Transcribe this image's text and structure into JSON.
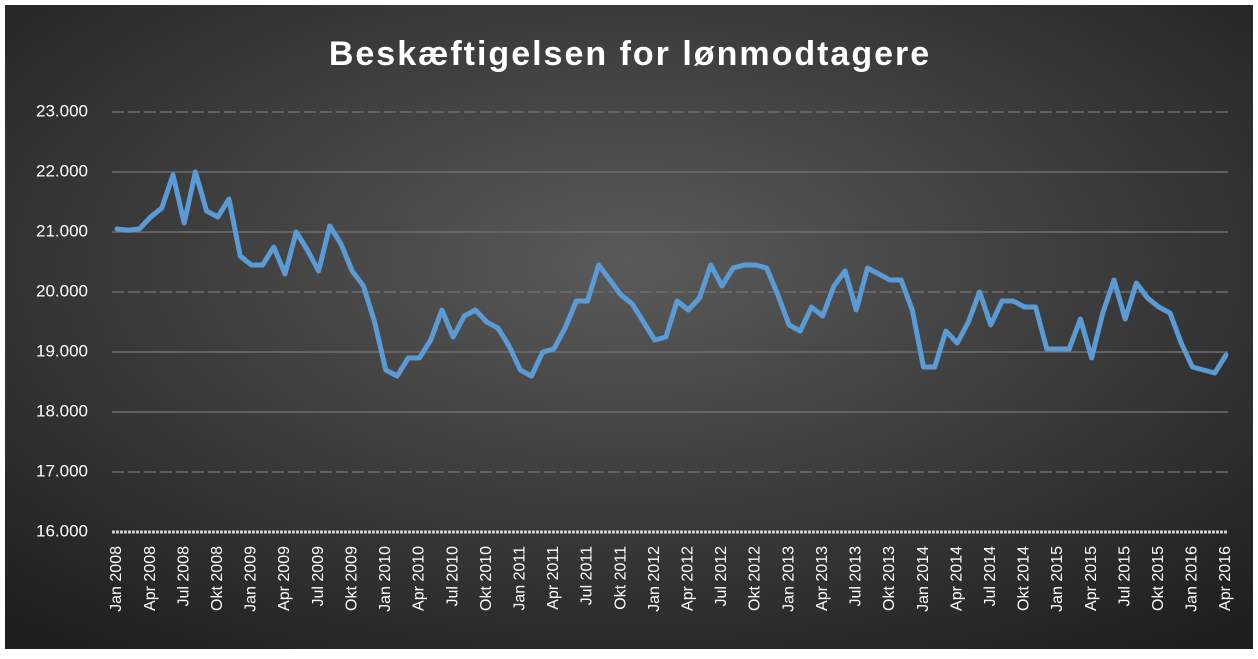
{
  "chart_data": {
    "type": "line",
    "title": "Beskæftigelsen for lønmodtagere",
    "categories": [
      "Jan 2008",
      null,
      null,
      "Apr 2008",
      null,
      null,
      "Jul 2008",
      null,
      null,
      "Okt 2008",
      null,
      null,
      "Jan 2009",
      null,
      null,
      "Apr 2009",
      null,
      null,
      "Jul 2009",
      null,
      null,
      "Okt 2009",
      null,
      null,
      "Jan 2010",
      null,
      null,
      "Apr 2010",
      null,
      null,
      "Jul 2010",
      null,
      null,
      "Okt 2010",
      null,
      null,
      "Jan 2011",
      null,
      null,
      "Apr 2011",
      null,
      null,
      "Jul 2011",
      null,
      null,
      "Okt 2011",
      null,
      null,
      "Jan 2012",
      null,
      null,
      "Apr 2012",
      null,
      null,
      "Jul 2012",
      null,
      null,
      "Okt 2012",
      null,
      null,
      "Jan 2013",
      null,
      null,
      "Apr 2013",
      null,
      null,
      "Jul 2013",
      null,
      null,
      "Okt 2013",
      null,
      null,
      "Jan 2014",
      null,
      null,
      "Apr 2014",
      null,
      null,
      "Jul 2014",
      null,
      null,
      "Okt 2014",
      null,
      null,
      "Jan 2015",
      null,
      null,
      "Apr 2015",
      null,
      null,
      "Jul 2015",
      null,
      null,
      "Okt 2015",
      null,
      null,
      "Jan 2016",
      null,
      null,
      "Apr 2016"
    ],
    "values": [
      21050,
      21030,
      21050,
      21250,
      21400,
      21950,
      21150,
      22000,
      21350,
      21250,
      21550,
      20600,
      20450,
      20450,
      20750,
      20300,
      21000,
      20700,
      20350,
      21100,
      20800,
      20350,
      20100,
      19500,
      18700,
      18600,
      18900,
      18900,
      19200,
      19700,
      19250,
      19600,
      19700,
      19500,
      19400,
      19100,
      18700,
      18600,
      19000,
      19050,
      19400,
      19850,
      19850,
      20450,
      20200,
      19950,
      19800,
      19500,
      19200,
      19250,
      19850,
      19700,
      19900,
      20450,
      20100,
      20400,
      20450,
      20450,
      20400,
      19950,
      19450,
      19350,
      19750,
      19600,
      20100,
      20350,
      19700,
      20400,
      20300,
      20200,
      20200,
      19700,
      18750,
      18750,
      19350,
      19150,
      19500,
      20000,
      19450,
      19850,
      19850,
      19750,
      19750,
      19050,
      19050,
      19050,
      19550,
      18900,
      19650,
      20200,
      19550,
      20150,
      19900,
      19750,
      19650,
      19150,
      18750,
      18700,
      18650,
      18950
    ],
    "color": "#5b9bd5",
    "ylim": [
      16000,
      23000
    ],
    "yticks": [
      {
        "value": 16000,
        "label": "16.000"
      },
      {
        "value": 17000,
        "label": "17.000"
      },
      {
        "value": 18000,
        "label": "18.000"
      },
      {
        "value": 19000,
        "label": "19.000"
      },
      {
        "value": 20000,
        "label": "20.000"
      },
      {
        "value": 21000,
        "label": "21.000"
      },
      {
        "value": 22000,
        "label": "22.000"
      },
      {
        "value": 23000,
        "label": "23.000"
      }
    ],
    "grid": true
  }
}
